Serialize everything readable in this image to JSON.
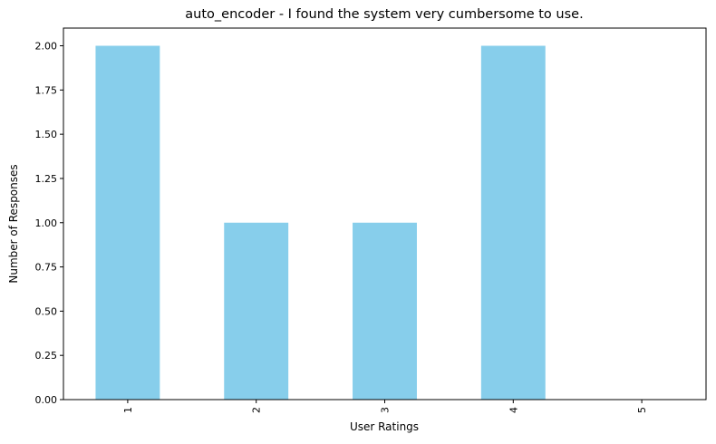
{
  "chart_data": {
    "type": "bar",
    "title": "auto_encoder - I found the system very cumbersome to use.",
    "xlabel": "User Ratings",
    "ylabel": "Number of Responses",
    "categories": [
      "1",
      "2",
      "3",
      "4",
      "5"
    ],
    "values": [
      2,
      1,
      1,
      2,
      0
    ],
    "ylim": [
      0,
      2.1
    ],
    "yticks": [
      "0.00",
      "0.25",
      "0.50",
      "0.75",
      "1.00",
      "1.25",
      "1.50",
      "1.75",
      "2.00"
    ],
    "grid": false,
    "legend": "none",
    "colors": {
      "bar": "#87ceeb",
      "axis": "#000000"
    }
  }
}
